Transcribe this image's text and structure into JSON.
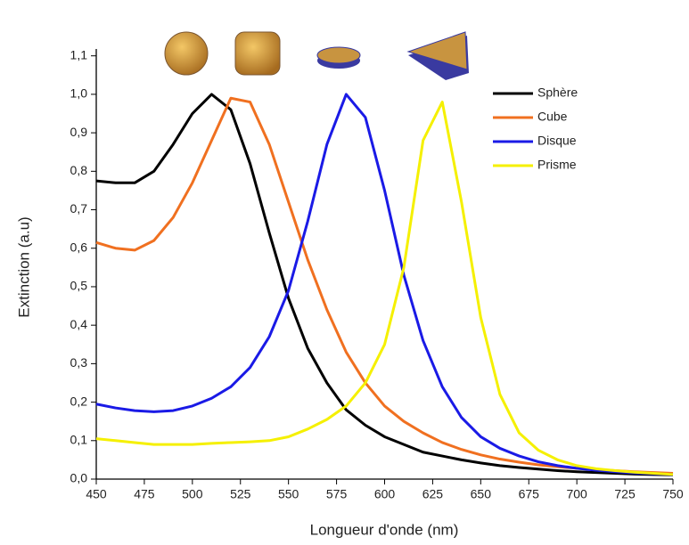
{
  "chart_data": {
    "type": "line",
    "x_label": "Longueur d'onde (nm)",
    "y_label": "Extinction (a.u)",
    "xlim": [
      450,
      750
    ],
    "ylim": [
      0,
      1.1
    ],
    "xticks": [
      450,
      475,
      500,
      525,
      550,
      575,
      600,
      625,
      650,
      675,
      700,
      725,
      750
    ],
    "yticks": [
      {
        "value": 0,
        "label": "0,0"
      },
      {
        "value": 0.1,
        "label": "0,1"
      },
      {
        "value": 0.2,
        "label": "0,2"
      },
      {
        "value": 0.3,
        "label": "0,3"
      },
      {
        "value": 0.4,
        "label": "0,4"
      },
      {
        "value": 0.5,
        "label": "0,5"
      },
      {
        "value": 0.6,
        "label": "0,6"
      },
      {
        "value": 0.7,
        "label": "0,7"
      },
      {
        "value": 0.8,
        "label": "0,8"
      },
      {
        "value": 0.9,
        "label": "0,9"
      },
      {
        "value": 1.0,
        "label": "1,0"
      },
      {
        "value": 1.1,
        "label": "1,1"
      }
    ],
    "legend": "upper right",
    "x": [
      450,
      460,
      470,
      480,
      490,
      500,
      510,
      520,
      530,
      540,
      550,
      560,
      570,
      580,
      590,
      600,
      610,
      620,
      630,
      640,
      650,
      660,
      670,
      680,
      690,
      700,
      710,
      720,
      730,
      740,
      750
    ],
    "series": [
      {
        "name": "Sphère",
        "color": "#000000",
        "values": [
          0.775,
          0.77,
          0.77,
          0.8,
          0.87,
          0.95,
          1.0,
          0.96,
          0.82,
          0.64,
          0.47,
          0.34,
          0.25,
          0.18,
          0.14,
          0.11,
          0.09,
          0.07,
          0.06,
          0.05,
          0.042,
          0.035,
          0.03,
          0.026,
          0.022,
          0.019,
          0.017,
          0.015,
          0.013,
          0.012,
          0.011
        ]
      },
      {
        "name": "Cube",
        "color": "#f07020",
        "values": [
          0.615,
          0.6,
          0.595,
          0.62,
          0.68,
          0.77,
          0.88,
          0.99,
          0.98,
          0.87,
          0.72,
          0.57,
          0.44,
          0.33,
          0.25,
          0.19,
          0.15,
          0.12,
          0.095,
          0.077,
          0.063,
          0.052,
          0.044,
          0.037,
          0.032,
          0.028,
          0.025,
          0.022,
          0.019,
          0.017,
          0.015
        ]
      },
      {
        "name": "Disque",
        "color": "#1a1ae6",
        "values": [
          0.195,
          0.185,
          0.178,
          0.175,
          0.178,
          0.19,
          0.21,
          0.24,
          0.29,
          0.37,
          0.49,
          0.67,
          0.87,
          1.0,
          0.94,
          0.75,
          0.53,
          0.36,
          0.24,
          0.16,
          0.11,
          0.08,
          0.06,
          0.045,
          0.035,
          0.028,
          0.023,
          0.019,
          0.016,
          0.014,
          0.012
        ]
      },
      {
        "name": "Prisme",
        "color": "#f5f000",
        "values": [
          0.105,
          0.1,
          0.095,
          0.09,
          0.09,
          0.09,
          0.093,
          0.095,
          0.097,
          0.1,
          0.11,
          0.13,
          0.155,
          0.19,
          0.25,
          0.35,
          0.55,
          0.88,
          0.98,
          0.72,
          0.42,
          0.22,
          0.12,
          0.075,
          0.05,
          0.035,
          0.027,
          0.022,
          0.018,
          0.015,
          0.012
        ]
      }
    ]
  }
}
